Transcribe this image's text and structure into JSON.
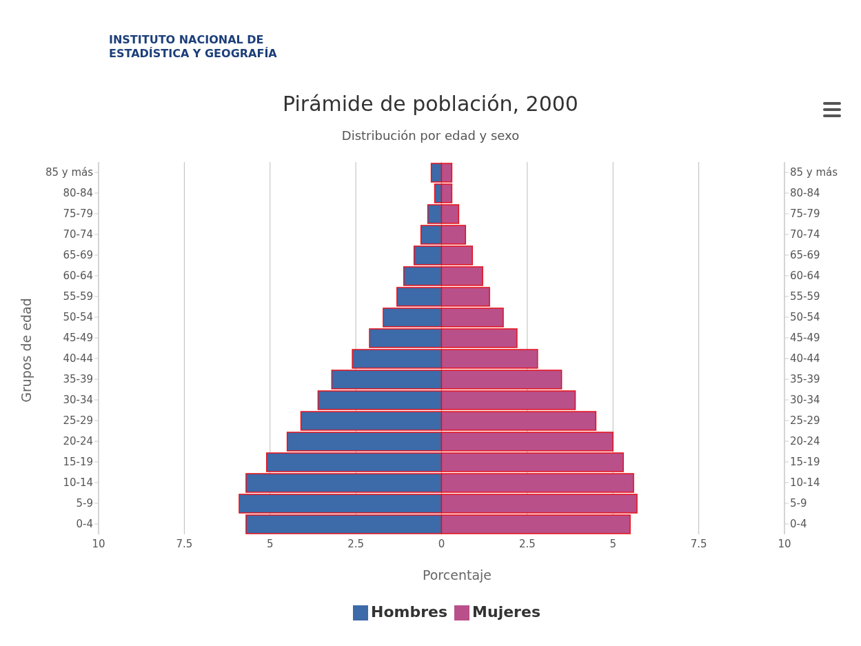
{
  "chart_data": {
    "type": "bar",
    "orientation": "horizontal",
    "stacked": true,
    "title": "Pirámide de población, 2000",
    "subtitle": "Distribución por edad y sexo",
    "xlabel": "Porcentaje",
    "ylabel": "Grupos de edad",
    "annotations": [
      "INSTITUTO NACIONAL DE ESTADÍSTICA Y GEOGRAFÍA"
    ],
    "categories": [
      "85 y más",
      "80-84",
      "75-79",
      "70-74",
      "65-69",
      "60-64",
      "55-59",
      "50-54",
      "45-49",
      "40-44",
      "35-39",
      "30-34",
      "25-29",
      "20-24",
      "15-19",
      "10-14",
      "5-9",
      "0-4"
    ],
    "series": [
      {
        "name": "Hombres",
        "color": "#3d6aa8",
        "values": [
          -0.3,
          -0.2,
          -0.4,
          -0.6,
          -0.8,
          -1.1,
          -1.3,
          -1.7,
          -2.1,
          -2.6,
          -3.2,
          -3.6,
          -4.1,
          -4.5,
          -5.1,
          -5.7,
          -5.9,
          -5.7
        ]
      },
      {
        "name": "Mujeres",
        "color": "#b9508a",
        "values": [
          0.3,
          0.3,
          0.5,
          0.7,
          0.9,
          1.2,
          1.4,
          1.8,
          2.2,
          2.8,
          3.5,
          3.9,
          4.5,
          5.0,
          5.3,
          5.6,
          5.7,
          5.5
        ]
      }
    ],
    "xlim": [
      -10,
      10
    ],
    "xticks": [
      {
        "value": -10,
        "label": "10"
      },
      {
        "value": -7.5,
        "label": "7.5"
      },
      {
        "value": -5,
        "label": "5"
      },
      {
        "value": -2.5,
        "label": "2.5"
      },
      0,
      2.5,
      5,
      7.5,
      10
    ],
    "grid": "x",
    "legend": "bottom"
  }
}
